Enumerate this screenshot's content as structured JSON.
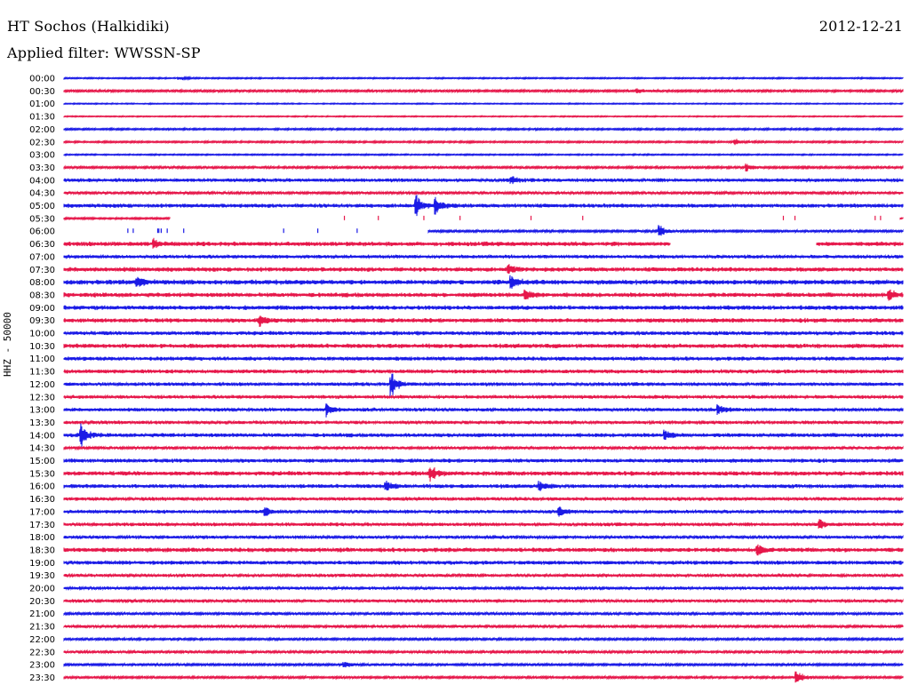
{
  "header": {
    "station": "HT Sochos (Halkidiki)",
    "filter": "Applied filter: WWSSN-SP",
    "date": "2012-12-21",
    "channel": "HHZ - 50000"
  },
  "colors": {
    "blue": "#1a1ae6",
    "red": "#e6174a"
  },
  "chart_data": {
    "type": "line",
    "title": "HT Sochos (Halkidiki)",
    "subtitle": "Applied filter: WWSSN-SP",
    "date": "2012-12-21",
    "ylabel": "HHZ - 50000",
    "xlabel": "",
    "grid": false,
    "row_labels": [
      "00:00",
      "00:30",
      "01:00",
      "01:30",
      "02:00",
      "02:30",
      "03:00",
      "03:30",
      "04:00",
      "04:30",
      "05:00",
      "05:30",
      "06:00",
      "06:30",
      "07:00",
      "07:30",
      "08:00",
      "08:30",
      "09:00",
      "09:30",
      "10:00",
      "10:30",
      "11:00",
      "11:30",
      "12:00",
      "12:30",
      "13:00",
      "13:30",
      "14:00",
      "14:30",
      "15:00",
      "15:30",
      "16:00",
      "16:30",
      "17:00",
      "17:30",
      "18:00",
      "18:30",
      "19:00",
      "19:30",
      "20:00",
      "20:30",
      "21:00",
      "21:30",
      "22:00",
      "22:30",
      "23:00",
      "23:30"
    ],
    "row_colors": [
      "blue",
      "red"
    ],
    "noise_level": [
      0.6,
      1.0,
      0.5,
      0.5,
      0.8,
      0.8,
      0.6,
      1.0,
      1.6,
      1.2,
      1.8,
      0.8,
      1.0,
      2.0,
      1.6,
      2.0,
      2.2,
      2.0,
      2.0,
      2.0,
      1.8,
      2.0,
      1.8,
      1.8,
      1.6,
      1.6,
      1.6,
      1.6,
      1.8,
      1.2,
      1.8,
      2.0,
      1.8,
      1.6,
      1.6,
      1.6,
      1.4,
      2.0,
      1.8,
      1.4,
      1.4,
      1.4,
      1.2,
      1.2,
      1.0,
      1.2,
      1.0,
      1.0
    ],
    "events": [
      {
        "row": "00:00",
        "t": 4.1,
        "amp": 2.0
      },
      {
        "row": "00:30",
        "t": 20.5,
        "amp": 3.0
      },
      {
        "row": "02:30",
        "t": 24.0,
        "amp": 3.5
      },
      {
        "row": "03:30",
        "t": 24.4,
        "amp": 4.0
      },
      {
        "row": "04:00",
        "t": 16.0,
        "amp": 4.0
      },
      {
        "row": "05:00",
        "t": 12.6,
        "amp": 10.0
      },
      {
        "row": "05:00",
        "t": 13.3,
        "amp": 8.0
      },
      {
        "row": "06:00",
        "t": 21.3,
        "amp": 7.0
      },
      {
        "row": "06:30",
        "t": 3.2,
        "amp": 5.0
      },
      {
        "row": "07:30",
        "t": 15.9,
        "amp": 5.0
      },
      {
        "row": "08:00",
        "t": 2.6,
        "amp": 6.0
      },
      {
        "row": "08:00",
        "t": 16.0,
        "amp": 7.0
      },
      {
        "row": "08:30",
        "t": 16.5,
        "amp": 6.0
      },
      {
        "row": "08:30",
        "t": 29.5,
        "amp": 6.0
      },
      {
        "row": "09:30",
        "t": 7.0,
        "amp": 5.0
      },
      {
        "row": "12:00",
        "t": 11.7,
        "amp": 12.0
      },
      {
        "row": "13:00",
        "t": 9.4,
        "amp": 6.0
      },
      {
        "row": "13:00",
        "t": 23.4,
        "amp": 5.0
      },
      {
        "row": "14:00",
        "t": 0.6,
        "amp": 13.0
      },
      {
        "row": "14:00",
        "t": 21.5,
        "amp": 5.0
      },
      {
        "row": "15:30",
        "t": 13.1,
        "amp": 8.0
      },
      {
        "row": "16:00",
        "t": 11.5,
        "amp": 6.0
      },
      {
        "row": "16:00",
        "t": 17.0,
        "amp": 5.0
      },
      {
        "row": "17:00",
        "t": 7.2,
        "amp": 5.0
      },
      {
        "row": "17:00",
        "t": 17.7,
        "amp": 5.0
      },
      {
        "row": "17:30",
        "t": 27.0,
        "amp": 6.0
      },
      {
        "row": "18:30",
        "t": 24.8,
        "amp": 6.0
      },
      {
        "row": "23:00",
        "t": 10.0,
        "amp": 4.0
      },
      {
        "row": "23:30",
        "t": 26.2,
        "amp": 9.0
      }
    ],
    "gaps": [
      {
        "row": "05:30",
        "start": 3.8,
        "end": 29.9
      },
      {
        "row": "06:00",
        "start": 0.0,
        "end": 13.0
      },
      {
        "row": "06:30",
        "start": 21.7,
        "end": 26.9
      }
    ]
  }
}
